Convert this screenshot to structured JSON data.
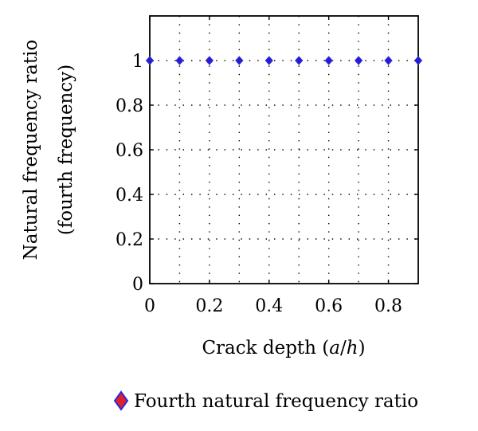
{
  "chart_data": {
    "type": "scatter",
    "title": "",
    "xlabel": "Crack depth (a/h)",
    "xlabel_parts": {
      "prefix": "Crack depth (",
      "var_a": "a",
      "slash": "/",
      "var_h": "h",
      "suffix": ")"
    },
    "ylabel_lines": [
      "Natural frequency ratio",
      "(fourth frequency)"
    ],
    "xlim": [
      0,
      0.9
    ],
    "ylim": [
      0,
      1.2
    ],
    "x_ticks": [
      0,
      0.2,
      0.4,
      0.6,
      0.8
    ],
    "x_tick_labels": [
      "0",
      "0.2",
      "0.4",
      "0.6",
      "0.8"
    ],
    "y_ticks": [
      0,
      0.2,
      0.4,
      0.6,
      0.8,
      1
    ],
    "y_tick_labels": [
      "0",
      "0.2",
      "0.4",
      "0.6",
      "0.8",
      "1"
    ],
    "grid_x": [
      0.1,
      0.2,
      0.3,
      0.4,
      0.5,
      0.6,
      0.7,
      0.8
    ],
    "grid_y": [
      0.2,
      0.4,
      0.6,
      0.8,
      1
    ],
    "grid": true,
    "legend_position": "bottom-center",
    "series": [
      {
        "name": "Fourth natural frequency ratio",
        "marker": "diamond",
        "marker_face": "#1f1fd6",
        "marker_edge": "#3a2ae0",
        "legend_face": "#e0202a",
        "legend_edge": "#2a2ad8",
        "x": [
          0,
          0.1,
          0.2,
          0.3,
          0.4,
          0.5,
          0.6,
          0.7,
          0.8,
          0.9
        ],
        "y": [
          1,
          1,
          1,
          1,
          1,
          1,
          1,
          1,
          1,
          1
        ]
      }
    ]
  }
}
